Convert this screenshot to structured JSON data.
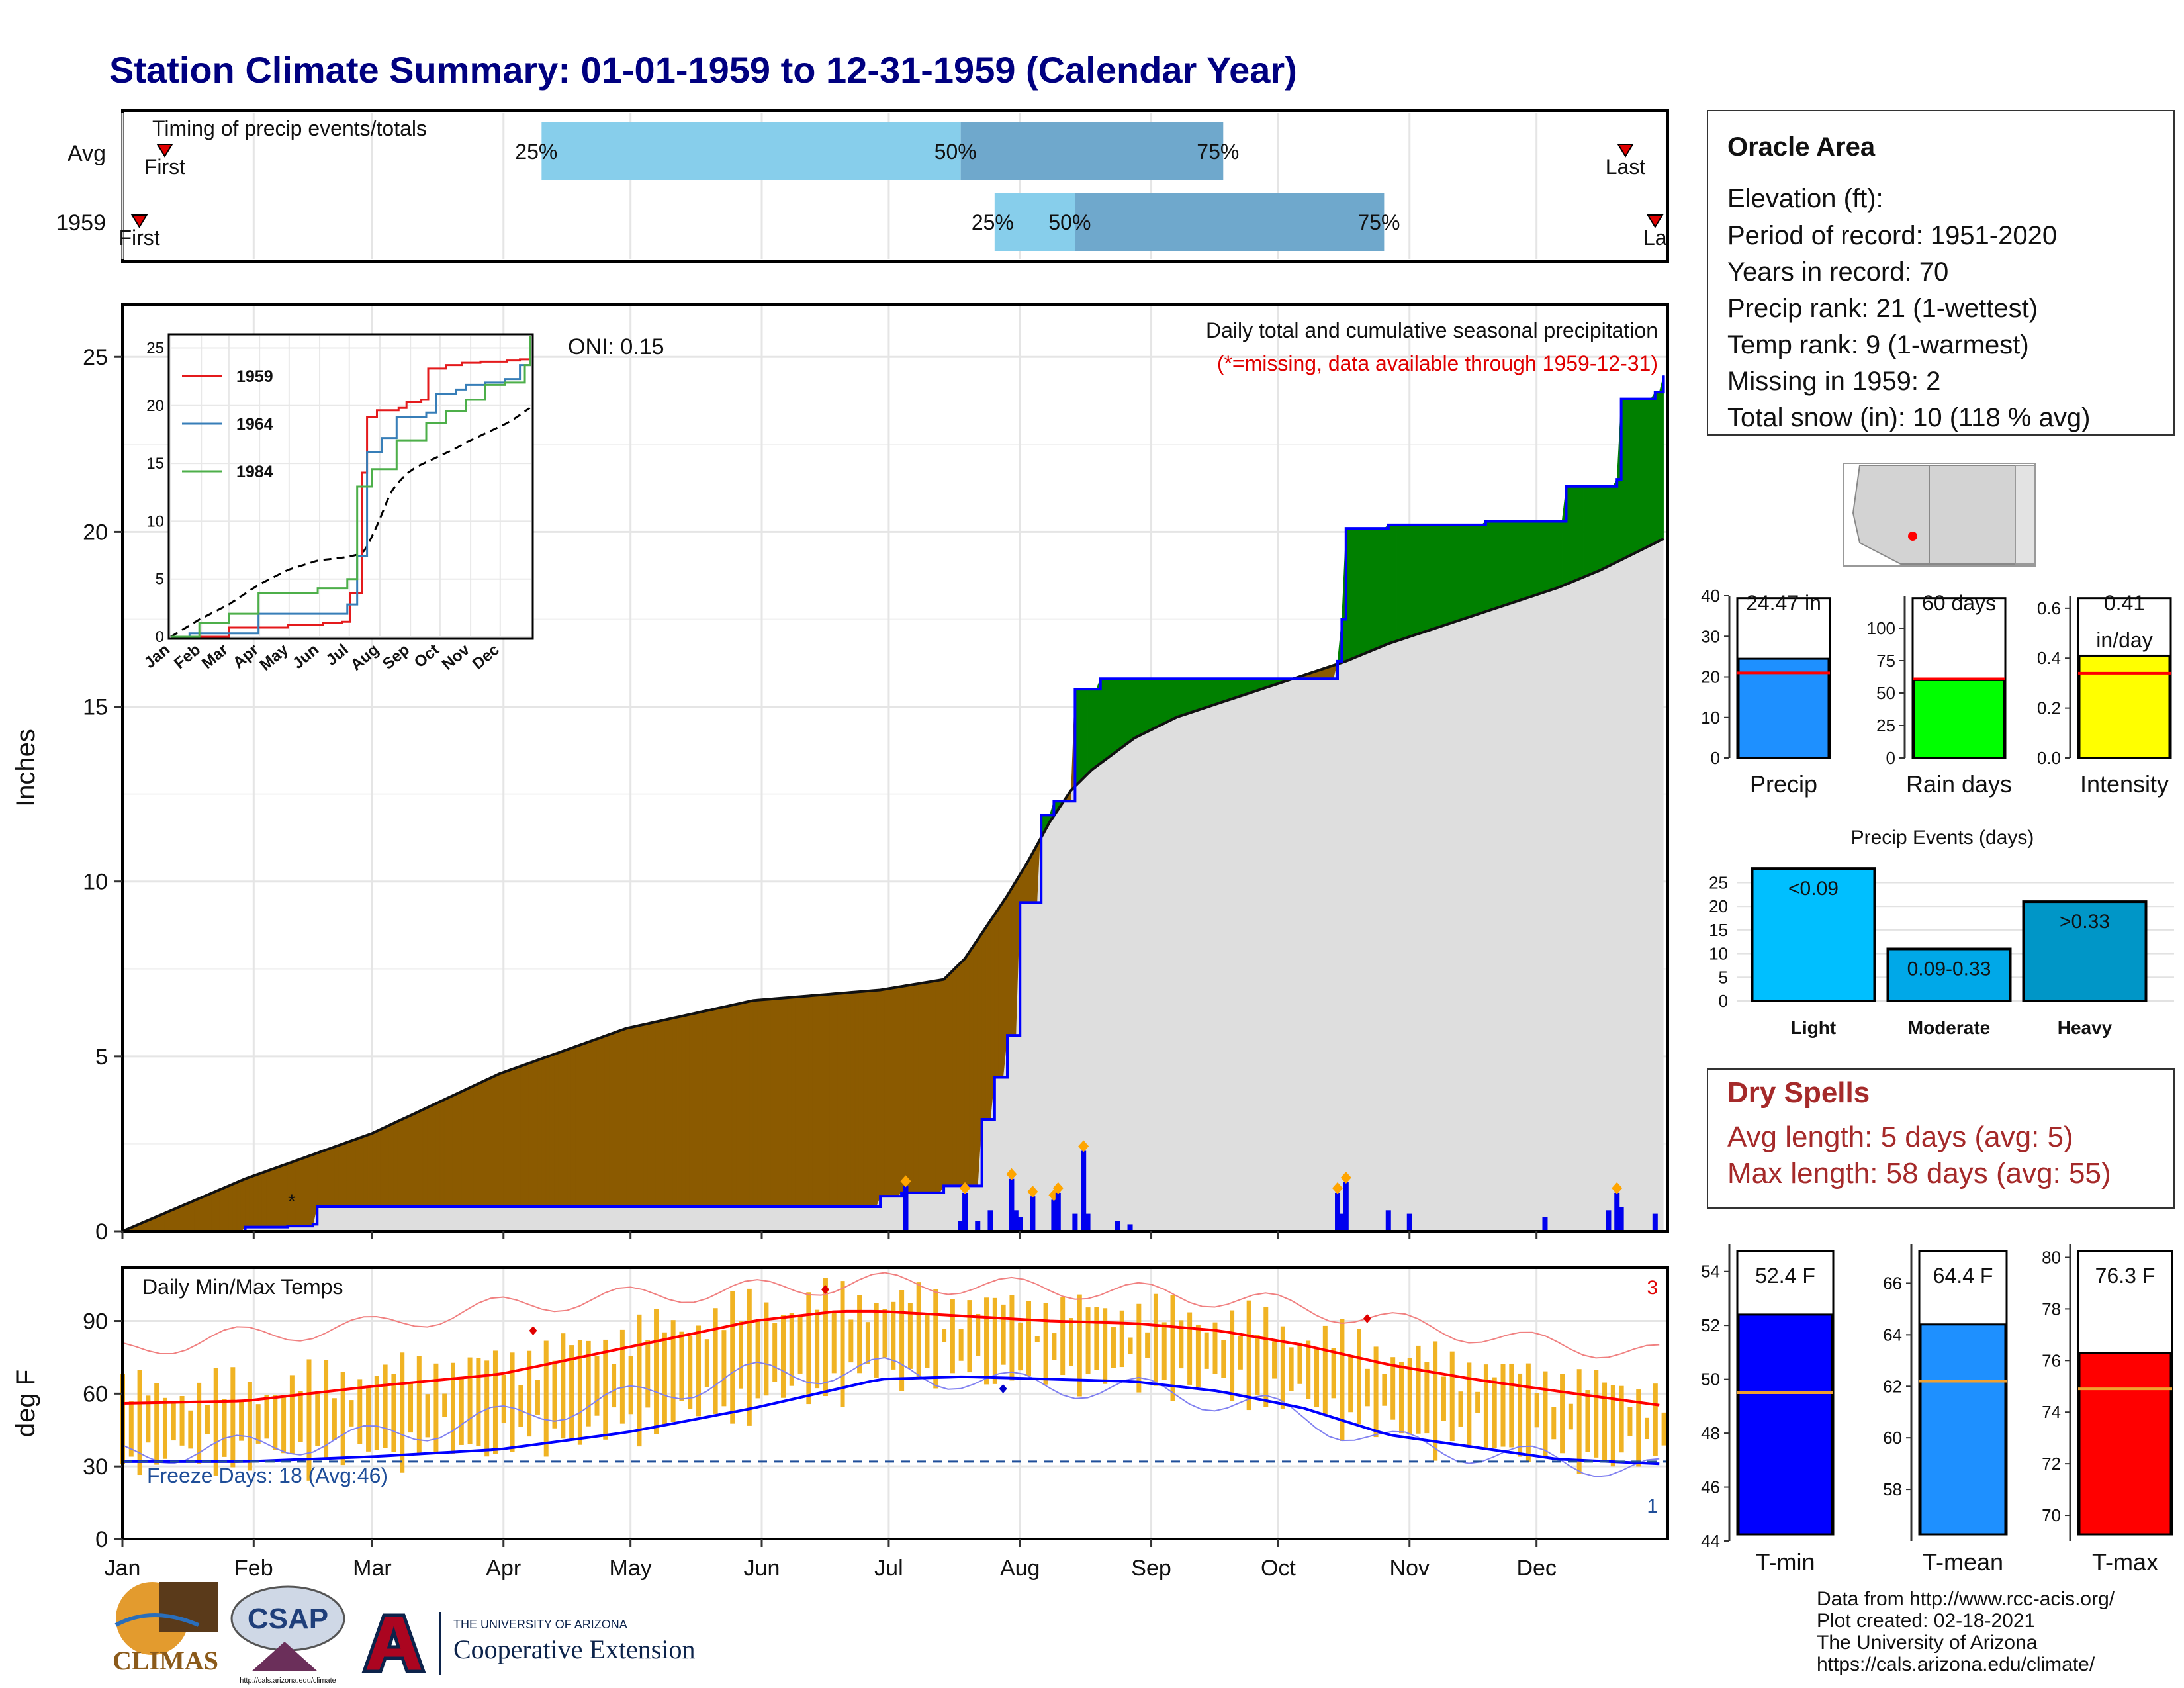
{
  "title": "Station Climate Summary: 01-01-1959 to 12-31-1959 (Calendar Year)",
  "months": [
    "Jan",
    "Feb",
    "Mar",
    "Apr",
    "May",
    "Jun",
    "Jul",
    "Aug",
    "Sep",
    "Oct",
    "Nov",
    "Dec"
  ],
  "timing": {
    "title": "Timing of precip events/totals",
    "rows": [
      {
        "label": "Avg",
        "first_label": "First",
        "last_label": "Last",
        "p25": "25%",
        "p50": "50%",
        "p75": "75%",
        "q25_doy": 100,
        "q50_doy": 199,
        "q75_doy": 261,
        "first_doy": 11,
        "last_doy": 356
      },
      {
        "label": "1959",
        "first_label": "First",
        "last_label": "La",
        "p25": "25%",
        "p50": "50%",
        "p75": "75%",
        "q25_doy": 207,
        "q50_doy": 226,
        "q75_doy": 299,
        "first_doy": 5,
        "last_doy": 363
      }
    ]
  },
  "main": {
    "ylabel": "Inches",
    "header": "Daily total and cumulative seasonal precipitation",
    "missing_note": "(*=missing, data available through 1959-12-31)",
    "oni": "ONI: 0.15",
    "yticks": [
      "0",
      "5",
      "10",
      "15",
      "20",
      "25"
    ]
  },
  "inset": {
    "legend": [
      "1959",
      "1964",
      "1984"
    ],
    "colors": [
      "#e41a1c",
      "#377eb8",
      "#4daf4a"
    ],
    "yticks": [
      "0",
      "5",
      "10",
      "15",
      "20",
      "25"
    ],
    "xticks": [
      "Jan",
      "Feb",
      "Mar",
      "Apr",
      "May",
      "Jun",
      "Jul",
      "Aug",
      "Sep",
      "Oct",
      "Nov",
      "Dec"
    ]
  },
  "temps": {
    "title": "Daily Min/Max Temps",
    "ylabel": "deg F",
    "freeze": "Freeze Days: 18 (Avg:46)",
    "count_top": "3",
    "count_bottom": "1",
    "yticks": [
      "0",
      "30",
      "60",
      "90"
    ]
  },
  "info": {
    "station": "Oracle Area",
    "lines": [
      "Elevation (ft):",
      "Period of record: 1951-2020",
      "Years in record: 70",
      "Precip rank: 21 (1-wettest)",
      "Temp rank: 9 (1-warmest)",
      "Missing in 1959: 2",
      "Total snow (in): 10 (118 % avg)"
    ]
  },
  "small_bars": [
    {
      "label": "Precip",
      "value_label": "24.47 in",
      "value": 24.47,
      "avg": 21.0,
      "ymax": 40,
      "ticks": [
        "0",
        "10",
        "20",
        "30",
        "40"
      ],
      "color": "#1e90ff"
    },
    {
      "label": "Rain days",
      "value_label": "60 days",
      "value": 60,
      "avg": 61,
      "ymax": 125,
      "ticks": [
        "0",
        "25",
        "50",
        "75",
        "100"
      ],
      "color": "#00ff00"
    },
    {
      "label": "Intensity",
      "value_label": "0.41",
      "unit_label": "in/day",
      "value": 0.41,
      "avg": 0.34,
      "ymax": 0.65,
      "ticks": [
        "0.0",
        "0.2",
        "0.4",
        "0.6"
      ],
      "color": "#ffff00"
    }
  ],
  "events": {
    "title": "Precip Events (days)",
    "ticks": [
      "0",
      "5",
      "10",
      "15",
      "20",
      "25"
    ],
    "bars": [
      {
        "label": "Light",
        "value_label": "<0.09",
        "value": 28,
        "color": "#00bfff"
      },
      {
        "label": "Moderate",
        "value_label": "0.09-0.33",
        "value": 11,
        "color": "#00a8e8"
      },
      {
        "label": "Heavy",
        "value_label": ">0.33",
        "value": 21,
        "color": "#0096c7"
      }
    ]
  },
  "dry_spells": {
    "title": "Dry Spells",
    "avg": "Avg length: 5 days (avg: 5)",
    "max": "Max length: 58 days (avg: 55)"
  },
  "temp_bars": [
    {
      "label": "T-min",
      "value_label": "52.4 F",
      "value": 52.4,
      "avg": 49.5,
      "ymin": 44,
      "ymax": 55,
      "ticks": [
        "44",
        "46",
        "48",
        "50",
        "52",
        "54"
      ],
      "color": "#0000ff"
    },
    {
      "label": "T-mean",
      "value_label": "64.4 F",
      "value": 64.4,
      "avg": 62.2,
      "ymin": 56,
      "ymax": 67.5,
      "ticks": [
        "58",
        "60",
        "62",
        "64",
        "66"
      ],
      "color": "#1e90ff"
    },
    {
      "label": "T-max",
      "value_label": "76.3 F",
      "value": 76.3,
      "avg": 74.9,
      "ymin": 69,
      "ymax": 80.5,
      "ticks": [
        "70",
        "72",
        "74",
        "76",
        "78",
        "80"
      ],
      "color": "#ff0000"
    }
  ],
  "footer": [
    "Data from http://www.rcc-acis.org/",
    "Plot created: 02-18-2021",
    "The University of Arizona",
    "https://cals.arizona.edu/climate/"
  ],
  "logos": {
    "climas": "CLIMAS",
    "csap": "CSAP",
    "csap_url": "http://cals.arizona.edu/climate",
    "ua_small": "THE UNIVERSITY OF ARIZONA",
    "ua_big": "Cooperative Extension"
  },
  "chart_data": [
    {
      "type": "area",
      "title": "Daily total and cumulative seasonal precipitation",
      "ylabel": "Inches",
      "ylim": [
        0,
        26.5
      ],
      "x_units": "day of year 1959",
      "series": [
        {
          "name": "1959",
          "x": [
            1,
            30,
            40,
            46,
            47,
            75,
            93,
            150,
            180,
            185,
            195,
            199,
            204,
            207,
            210,
            213,
            218,
            221,
            226,
            232,
            236,
            288,
            289,
            290,
            300,
            323,
            342,
            354,
            355,
            363,
            365
          ],
          "values": [
            0,
            0.12,
            0.15,
            0.2,
            0.7,
            0.7,
            0.7,
            0.7,
            1.0,
            1.1,
            1.3,
            1.3,
            3.2,
            4.4,
            5.6,
            9.4,
            11.9,
            12.3,
            15.5,
            15.8,
            15.8,
            16.3,
            17.5,
            20.1,
            20.2,
            20.3,
            21.3,
            21.5,
            23.8,
            24.0,
            24.47
          ]
        },
        {
          "x": [
            1,
            30,
            60,
            90,
            120,
            150,
            180,
            195,
            200,
            205,
            210,
            215,
            220,
            225,
            230,
            240,
            250,
            260,
            270,
            280,
            290,
            300,
            320,
            340,
            350,
            365
          ],
          "values": [
            0,
            1.5,
            2.8,
            4.5,
            5.8,
            6.6,
            6.9,
            7.2,
            7.8,
            8.7,
            9.6,
            10.6,
            11.7,
            12.6,
            13.2,
            14.1,
            14.7,
            15.1,
            15.5,
            15.9,
            16.3,
            16.8,
            17.6,
            18.4,
            18.9,
            19.8
          ]
        }
      ],
      "daily_events_x": [
        186,
        199,
        200,
        203,
        206,
        211,
        212,
        213,
        216,
        221,
        222,
        226,
        228,
        229,
        236,
        239,
        288,
        289,
        290,
        300,
        305,
        337,
        352,
        354,
        355,
        363
      ],
      "daily_events_values": [
        1.3,
        0.3,
        1.1,
        0.3,
        0.6,
        1.5,
        0.6,
        0.4,
        1.0,
        0.9,
        1.1,
        0.5,
        2.3,
        0.5,
        0.3,
        0.2,
        1.1,
        0.5,
        1.4,
        0.6,
        0.5,
        0.4,
        0.6,
        1.1,
        0.7,
        0.5
      ]
    },
    {
      "type": "line",
      "title": "Daily Min/Max Temps",
      "ylabel": "deg F",
      "ylim": [
        0,
        112
      ],
      "x_units": "day of year 1959",
      "series": [
        {
          "x": [
            1,
            30,
            60,
            90,
            120,
            150,
            170,
            180,
            200,
            220,
            240,
            260,
            280,
            300,
            320,
            340,
            365
          ],
          "values": [
            56,
            57,
            63,
            68,
            79,
            90,
            94,
            94,
            92,
            90,
            89,
            86,
            80,
            72,
            66,
            61,
            55
          ]
        },
        {
          "x": [
            1,
            30,
            60,
            90,
            120,
            150,
            170,
            180,
            200,
            220,
            240,
            260,
            280,
            300,
            320,
            340,
            365
          ],
          "values": [
            32,
            32,
            34,
            37,
            44,
            54,
            62,
            66,
            67,
            66,
            65,
            61,
            54,
            43,
            38,
            33,
            31
          ]
        },
        {
          "x": [
            1,
            30,
            60,
            90,
            120,
            150,
            180,
            210,
            240,
            270,
            300,
            330,
            365
          ],
          "values": [
            35,
            38,
            42,
            50,
            58,
            68,
            70,
            64,
            62,
            55,
            40,
            34,
            28
          ]
        },
        {
          "x": [
            1,
            30,
            60,
            90,
            120,
            150,
            180,
            210,
            240,
            270,
            300,
            330,
            365
          ],
          "values": [
            78,
            84,
            88,
            96,
            100,
            103,
            106,
            104,
            102,
            98,
            90,
            82,
            76
          ]
        }
      ]
    },
    {
      "type": "line",
      "title": "",
      "ylim": [
        0,
        26
      ],
      "series": [
        {
          "name": "1959",
          "x": [
            1,
            60,
            120,
            155,
            175,
            183,
            195,
            200,
            210,
            232,
            240,
            255,
            262,
            280,
            296,
            315,
            342,
            355,
            365
          ],
          "values": [
            0,
            0.8,
            1.0,
            1.2,
            1.3,
            3.8,
            14.2,
            19.0,
            19.6,
            19.8,
            20.3,
            20.5,
            23.2,
            23.5,
            23.7,
            23.8,
            23.9,
            24.0,
            24.47
          ]
        },
        {
          "name": "1964",
          "x": [
            1,
            20,
            90,
            180,
            190,
            200,
            215,
            230,
            260,
            270,
            290,
            300,
            320,
            340,
            355,
            365
          ],
          "values": [
            0,
            0.3,
            2.0,
            2.8,
            7.0,
            16.0,
            17.2,
            19.0,
            19.4,
            21.0,
            21.4,
            21.8,
            22.0,
            22.3,
            23.5,
            26.0
          ]
        },
        {
          "name": "1984",
          "x": [
            1,
            30,
            60,
            90,
            150,
            180,
            190,
            205,
            230,
            260,
            280,
            300,
            320,
            340,
            360,
            365
          ],
          "values": [
            0,
            1.2,
            2.0,
            3.8,
            4.2,
            5.0,
            13.0,
            14.5,
            17.0,
            18.5,
            19.5,
            20.5,
            21.8,
            22.0,
            23.5,
            26.0
          ]
        }
      ]
    },
    {
      "type": "bar",
      "categories": [
        "Precip"
      ],
      "values": [
        24.47
      ],
      "ylim": [
        0,
        40
      ]
    },
    {
      "type": "bar",
      "categories": [
        "Rain days"
      ],
      "values": [
        60
      ],
      "ylim": [
        0,
        125
      ]
    },
    {
      "type": "bar",
      "categories": [
        "Intensity"
      ],
      "values": [
        0.41
      ],
      "ylim": [
        0,
        0.65
      ]
    },
    {
      "type": "bar",
      "title": "Precip Events (days)",
      "categories": [
        "Light",
        "Moderate",
        "Heavy"
      ],
      "values": [
        28,
        11,
        21
      ],
      "ylim": [
        0,
        29
      ]
    },
    {
      "type": "bar",
      "categories": [
        "T-min"
      ],
      "values": [
        52.4
      ],
      "ylim": [
        44,
        55
      ]
    },
    {
      "type": "bar",
      "categories": [
        "T-mean"
      ],
      "values": [
        64.4
      ],
      "ylim": [
        56,
        67.5
      ]
    },
    {
      "type": "bar",
      "categories": [
        "T-max"
      ],
      "values": [
        76.3
      ],
      "ylim": [
        69,
        80.5
      ]
    }
  ]
}
